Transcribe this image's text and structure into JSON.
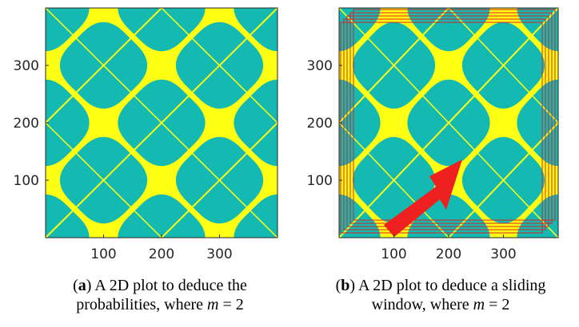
{
  "colors": {
    "background": "#14BAB2",
    "pattern": "#FFFF14",
    "window": "#E02020",
    "arrow": "#EE2020",
    "axis": "#262626"
  },
  "panels": [
    {
      "x_ticks": [
        "100",
        "200",
        "300"
      ],
      "y_ticks": [
        "100",
        "200",
        "300"
      ],
      "caption": {
        "tag": "a",
        "line1": ") A 2D plot to deduce the",
        "line2": "probabilities, where ",
        "var": "m",
        "eq": " = 2"
      },
      "windows": false
    },
    {
      "x_ticks": [
        "100",
        "200",
        "300"
      ],
      "y_ticks": [
        "100",
        "200",
        "300"
      ],
      "caption": {
        "tag": "b",
        "line1": ") A 2D plot to deduce a sliding",
        "line2": "window, where ",
        "var": "m",
        "eq": " = 2"
      },
      "windows": true
    }
  ]
}
